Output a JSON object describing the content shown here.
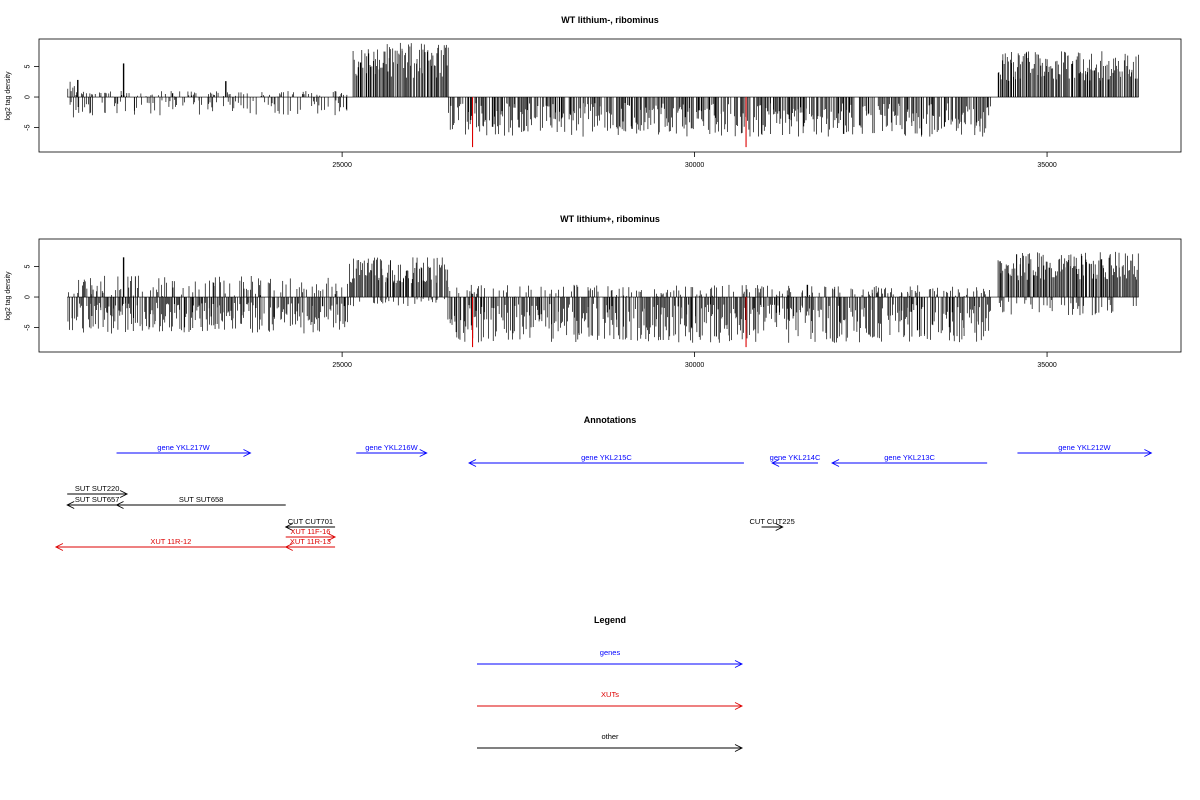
{
  "colors": {
    "black": "#000000",
    "red": "#dd0000",
    "blue": "#0000ff"
  },
  "chart_data": [
    {
      "type": "bar",
      "title": "WT lithium-, ribominus",
      "ylabel": "log2 tag density",
      "xlim": [
        20700,
        36900
      ],
      "ylim": [
        -9,
        9.5
      ],
      "x_ticks": [
        25000,
        30000,
        35000
      ],
      "y_ticks": [
        -5,
        0,
        5
      ],
      "grid": false,
      "profile": [
        {
          "start": 21100,
          "end": 21200,
          "plus": 2.5,
          "minus": -4
        },
        {
          "start": 21200,
          "end": 22400,
          "plus": 1,
          "minus": -3
        },
        {
          "start": 22400,
          "end": 25100,
          "plus": 1,
          "minus": -3
        },
        {
          "start": 25150,
          "end": 26500,
          "plus": 9,
          "minus": 0
        },
        {
          "start": 26500,
          "end": 34200,
          "plus": 0,
          "minus": -6.5
        },
        {
          "start": 34300,
          "end": 36300,
          "plus": 7.5,
          "minus": 0
        }
      ],
      "spikes": [
        {
          "x": 21250,
          "value": 2.8,
          "color": "black"
        },
        {
          "x": 21900,
          "value": 5.5,
          "color": "black"
        },
        {
          "x": 23350,
          "value": 2.6,
          "color": "black"
        },
        {
          "x": 26850,
          "value": -8.2,
          "color": "red"
        },
        {
          "x": 30730,
          "value": -8.2,
          "color": "red"
        }
      ]
    },
    {
      "type": "bar",
      "title": "WT lithium+, ribominus",
      "ylabel": "log2 tag density",
      "xlim": [
        20700,
        36900
      ],
      "ylim": [
        -9,
        9.5
      ],
      "x_ticks": [
        25000,
        30000,
        35000
      ],
      "y_ticks": [
        -5,
        0,
        5
      ],
      "grid": false,
      "profile": [
        {
          "start": 21100,
          "end": 25100,
          "plus": 3.5,
          "minus": -6
        },
        {
          "start": 25100,
          "end": 26500,
          "plus": 6.5,
          "minus": -1.5
        },
        {
          "start": 26500,
          "end": 34200,
          "plus": 2,
          "minus": -7.5
        },
        {
          "start": 34300,
          "end": 36300,
          "plus": 7.5,
          "minus": -3
        }
      ],
      "spikes": [
        {
          "x": 21900,
          "value": 6.5,
          "color": "black"
        },
        {
          "x": 31600,
          "value": 2,
          "color": "black"
        },
        {
          "x": 26850,
          "value": -8.2,
          "color": "red"
        },
        {
          "x": 30730,
          "value": -8.2,
          "color": "red"
        }
      ]
    }
  ],
  "annotations": {
    "title": "Annotations",
    "features": [
      {
        "label": "gene YKL217W",
        "start": 21800,
        "end": 23700,
        "strand": "+",
        "class": "gene",
        "row": 0
      },
      {
        "label": "gene YKL216W",
        "start": 25200,
        "end": 26200,
        "strand": "+",
        "class": "gene",
        "row": 0
      },
      {
        "label": "gene YKL215C",
        "start": 26800,
        "end": 30700,
        "strand": "-",
        "class": "gene",
        "row": 1
      },
      {
        "label": "gene YKL214C",
        "start": 31100,
        "end": 31750,
        "strand": "-",
        "class": "gene",
        "row": 1
      },
      {
        "label": "gene YKL213C",
        "start": 31950,
        "end": 34150,
        "strand": "-",
        "class": "gene",
        "row": 1
      },
      {
        "label": "gene YKL212W",
        "start": 34580,
        "end": 36480,
        "strand": "+",
        "class": "gene",
        "row": 0
      },
      {
        "label": "SUT SUT220",
        "start": 21100,
        "end": 21950,
        "strand": "+",
        "class": "other",
        "row": 2
      },
      {
        "label": "SUT SUT657",
        "start": 21100,
        "end": 21950,
        "strand": "-",
        "class": "other",
        "row": 3
      },
      {
        "label": "SUT SUT658",
        "start": 21800,
        "end": 24200,
        "strand": "-",
        "class": "other",
        "row": 3
      },
      {
        "label": "CUT CUT701",
        "start": 24200,
        "end": 24900,
        "strand": "-",
        "class": "other",
        "row": 4
      },
      {
        "label": "CUT CUT225",
        "start": 30950,
        "end": 31250,
        "strand": "+",
        "class": "other",
        "row": 4
      },
      {
        "label": "XUT 11F-16",
        "start": 24200,
        "end": 24900,
        "strand": "+",
        "class": "XUT",
        "row": 5
      },
      {
        "label": "XUT 11R-12",
        "start": 20940,
        "end": 24200,
        "strand": "-",
        "class": "XUT",
        "row": 6
      },
      {
        "label": "XUT 11R-13",
        "start": 24200,
        "end": 24900,
        "strand": "-",
        "class": "XUT",
        "row": 6
      }
    ]
  },
  "legend": {
    "title": "Legend",
    "items": [
      {
        "label": "genes",
        "class": "gene"
      },
      {
        "label": "XUTs",
        "class": "XUT"
      },
      {
        "label": "other",
        "class": "other"
      }
    ]
  }
}
